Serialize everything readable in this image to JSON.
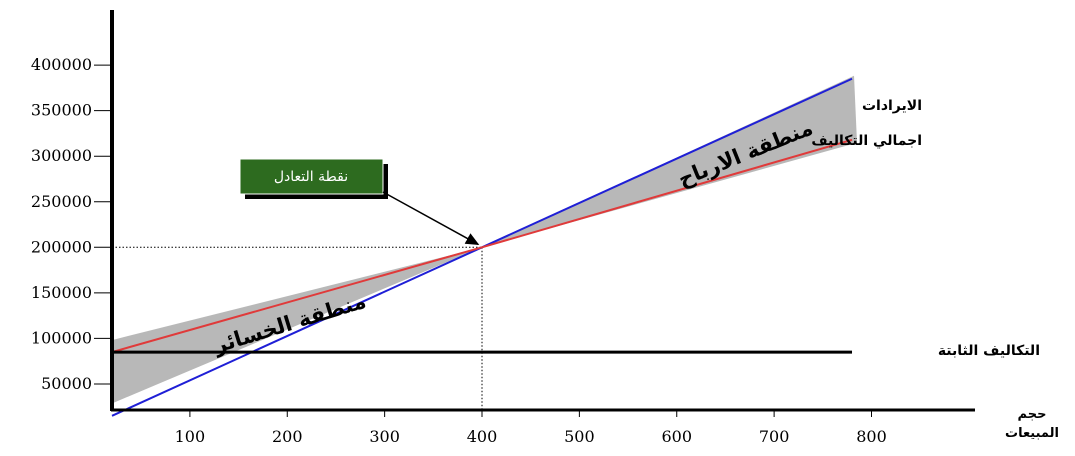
{
  "chart_data": {
    "type": "line",
    "title": "",
    "xlabel": "حجم المبيعات",
    "xlabel_lines": [
      "حجم",
      "المبيعات"
    ],
    "ylabel": "",
    "xlim": [
      20,
      900
    ],
    "ylim": [
      20000,
      440000
    ],
    "x_ticks": [
      100,
      200,
      300,
      400,
      500,
      600,
      700,
      800
    ],
    "y_ticks": [
      50000,
      100000,
      150000,
      200000,
      250000,
      300000,
      350000,
      400000
    ],
    "series": [
      {
        "name": "الايرادات",
        "color": "#1f1fd6",
        "x": [
          20,
          400,
          780
        ],
        "y": [
          15000,
          200000,
          385000
        ]
      },
      {
        "name": "اجمالي التكاليف",
        "color": "#e03a3a",
        "x": [
          20,
          400,
          780
        ],
        "y": [
          85000,
          200000,
          318000
        ]
      },
      {
        "name": "التكاليف الثابتة",
        "color": "#000000",
        "x": [
          20,
          780
        ],
        "y": [
          85000,
          85000
        ]
      }
    ],
    "break_even": {
      "label": "نقطة التعادل",
      "x": 400,
      "y": 200000
    },
    "regions": [
      {
        "label": "منطقة الخسائر",
        "color": "#b8b8b8"
      },
      {
        "label": "منطقة الارباح",
        "color": "#b8b8b8"
      }
    ],
    "grid": false
  }
}
